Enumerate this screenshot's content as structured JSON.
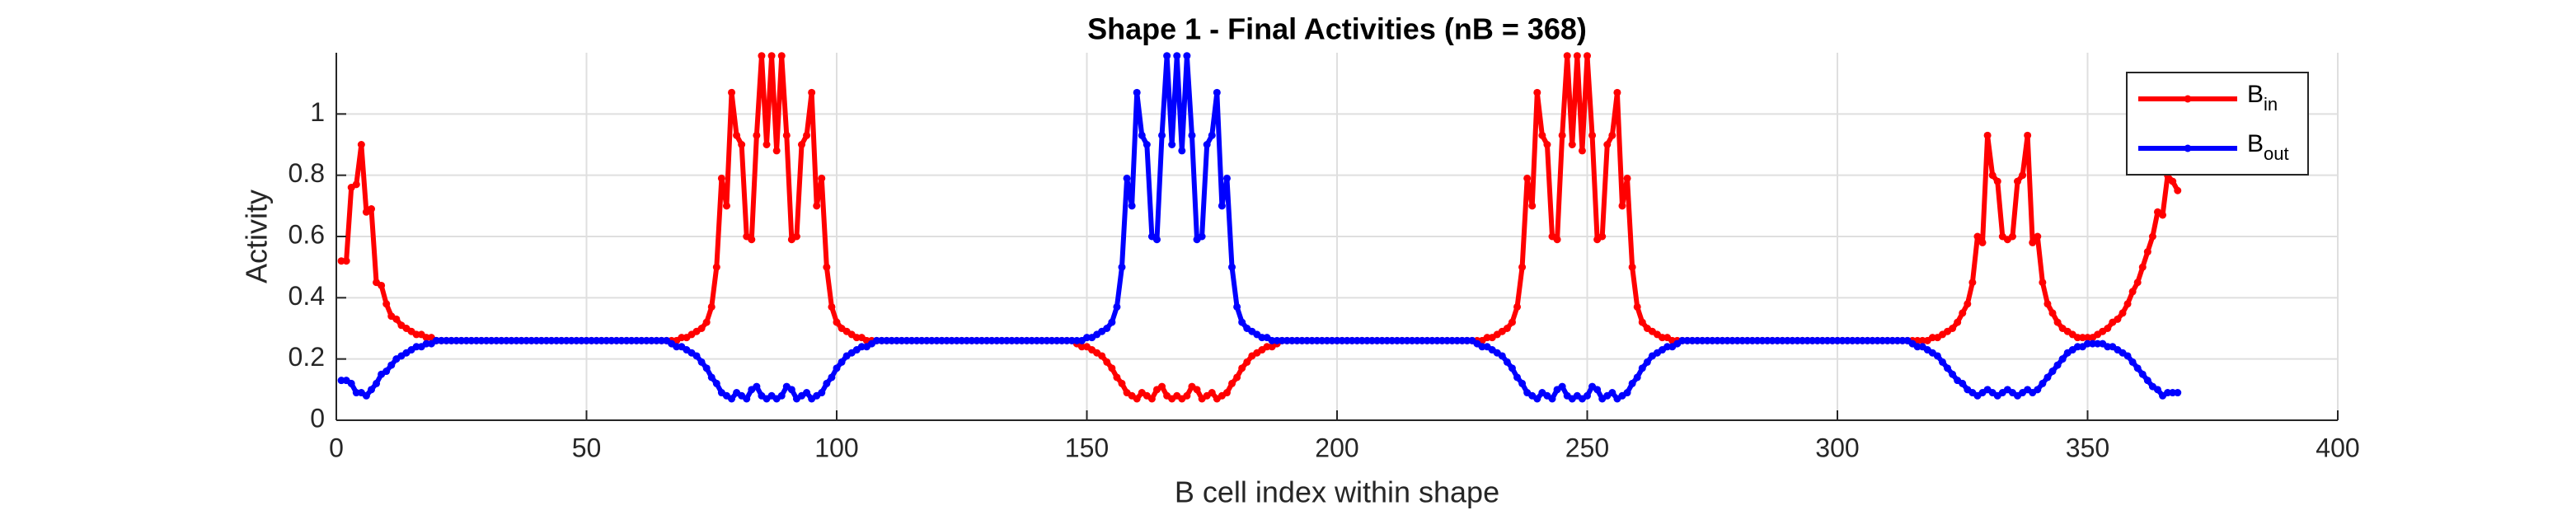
{
  "chart_data": {
    "type": "line",
    "title": "Shape 1 - Final Activities (nB = 368)",
    "x_label": "B cell index within shape",
    "y_label": "Activity",
    "xlim": [
      0,
      400
    ],
    "xticks": [
      0,
      50,
      100,
      150,
      200,
      250,
      300,
      350,
      400
    ],
    "ylim": [
      0,
      1.2
    ],
    "yticks": [
      0,
      0.2,
      0.4,
      0.6,
      0.8,
      1
    ],
    "grid": true,
    "legend": "northeast",
    "x": [
      1,
      2,
      3,
      4,
      5,
      6,
      7,
      8,
      9,
      10,
      11,
      12,
      13,
      14,
      15,
      16,
      17,
      18,
      19,
      20,
      21,
      22,
      23,
      24,
      25,
      26,
      27,
      28,
      29,
      30,
      31,
      32,
      33,
      34,
      35,
      36,
      37,
      38,
      39,
      40,
      41,
      42,
      43,
      44,
      45,
      46,
      47,
      48,
      49,
      50,
      51,
      52,
      53,
      54,
      55,
      56,
      57,
      58,
      59,
      60,
      61,
      62,
      63,
      64,
      65,
      66,
      67,
      68,
      69,
      70,
      71,
      72,
      73,
      74,
      75,
      76,
      77,
      78,
      79,
      80,
      81,
      82,
      83,
      84,
      85,
      86,
      87,
      88,
      89,
      90,
      91,
      92,
      93,
      94,
      95,
      96,
      97,
      98,
      99,
      100,
      101,
      102,
      103,
      104,
      105,
      106,
      107,
      108,
      109,
      110,
      111,
      112,
      113,
      114,
      115,
      116,
      117,
      118,
      119,
      120,
      121,
      122,
      123,
      124,
      125,
      126,
      127,
      128,
      129,
      130,
      131,
      132,
      133,
      134,
      135,
      136,
      137,
      138,
      139,
      140,
      141,
      142,
      143,
      144,
      145,
      146,
      147,
      148,
      149,
      150,
      151,
      152,
      153,
      154,
      155,
      156,
      157,
      158,
      159,
      160,
      161,
      162,
      163,
      164,
      165,
      166,
      167,
      168,
      169,
      170,
      171,
      172,
      173,
      174,
      175,
      176,
      177,
      178,
      179,
      180,
      181,
      182,
      183,
      184,
      185,
      186,
      187,
      188,
      189,
      190,
      191,
      192,
      193,
      194,
      195,
      196,
      197,
      198,
      199,
      200,
      201,
      202,
      203,
      204,
      205,
      206,
      207,
      208,
      209,
      210,
      211,
      212,
      213,
      214,
      215,
      216,
      217,
      218,
      219,
      220,
      221,
      222,
      223,
      224,
      225,
      226,
      227,
      228,
      229,
      230,
      231,
      232,
      233,
      234,
      235,
      236,
      237,
      238,
      239,
      240,
      241,
      242,
      243,
      244,
      245,
      246,
      247,
      248,
      249,
      250,
      251,
      252,
      253,
      254,
      255,
      256,
      257,
      258,
      259,
      260,
      261,
      262,
      263,
      264,
      265,
      266,
      267,
      268,
      269,
      270,
      271,
      272,
      273,
      274,
      275,
      276,
      277,
      278,
      279,
      280,
      281,
      282,
      283,
      284,
      285,
      286,
      287,
      288,
      289,
      290,
      291,
      292,
      293,
      294,
      295,
      296,
      297,
      298,
      299,
      300,
      301,
      302,
      303,
      304,
      305,
      306,
      307,
      308,
      309,
      310,
      311,
      312,
      313,
      314,
      315,
      316,
      317,
      318,
      319,
      320,
      321,
      322,
      323,
      324,
      325,
      326,
      327,
      328,
      329,
      330,
      331,
      332,
      333,
      334,
      335,
      336,
      337,
      338,
      339,
      340,
      341,
      342,
      343,
      344,
      345,
      346,
      347,
      348,
      349,
      350,
      351,
      352,
      353,
      354,
      355,
      356,
      357,
      358,
      359,
      360,
      361,
      362,
      363,
      364,
      365,
      366,
      367,
      368
    ],
    "series": [
      {
        "name": "B",
        "subscript": "in",
        "color": "#ff0000",
        "values": [
          0.52,
          0.52,
          0.76,
          0.77,
          0.9,
          0.68,
          0.69,
          0.45,
          0.44,
          0.38,
          0.34,
          0.33,
          0.31,
          0.3,
          0.29,
          0.28,
          0.28,
          0.27,
          0.27,
          0.26,
          0.26,
          0.26,
          0.26,
          0.26,
          0.26,
          0.26,
          0.26,
          0.26,
          0.26,
          0.26,
          0.26,
          0.26,
          0.26,
          0.26,
          0.26,
          0.26,
          0.26,
          0.26,
          0.26,
          0.26,
          0.26,
          0.26,
          0.26,
          0.26,
          0.26,
          0.26,
          0.26,
          0.26,
          0.26,
          0.26,
          0.26,
          0.26,
          0.26,
          0.26,
          0.26,
          0.26,
          0.26,
          0.26,
          0.26,
          0.26,
          0.26,
          0.26,
          0.26,
          0.26,
          0.26,
          0.26,
          0.26,
          0.26,
          0.27,
          0.27,
          0.28,
          0.29,
          0.3,
          0.32,
          0.37,
          0.5,
          0.79,
          0.7,
          1.07,
          0.93,
          0.9,
          0.6,
          0.59,
          0.93,
          1.19,
          0.9,
          1.19,
          0.88,
          1.19,
          0.93,
          0.59,
          0.6,
          0.9,
          0.93,
          1.07,
          0.7,
          0.79,
          0.5,
          0.37,
          0.32,
          0.3,
          0.29,
          0.28,
          0.27,
          0.27,
          0.26,
          0.26,
          0.26,
          0.26,
          0.26,
          0.26,
          0.26,
          0.26,
          0.26,
          0.26,
          0.26,
          0.26,
          0.26,
          0.26,
          0.26,
          0.26,
          0.26,
          0.26,
          0.26,
          0.26,
          0.26,
          0.26,
          0.26,
          0.26,
          0.26,
          0.26,
          0.26,
          0.26,
          0.26,
          0.26,
          0.26,
          0.26,
          0.26,
          0.26,
          0.26,
          0.26,
          0.26,
          0.26,
          0.26,
          0.26,
          0.26,
          0.26,
          0.25,
          0.24,
          0.24,
          0.23,
          0.22,
          0.21,
          0.19,
          0.17,
          0.14,
          0.12,
          0.09,
          0.08,
          0.07,
          0.09,
          0.08,
          0.07,
          0.1,
          0.11,
          0.08,
          0.07,
          0.08,
          0.07,
          0.08,
          0.11,
          0.1,
          0.07,
          0.08,
          0.09,
          0.07,
          0.08,
          0.09,
          0.12,
          0.14,
          0.17,
          0.19,
          0.21,
          0.22,
          0.23,
          0.24,
          0.24,
          0.25,
          0.26,
          0.26,
          0.26,
          0.26,
          0.26,
          0.26,
          0.26,
          0.26,
          0.26,
          0.26,
          0.26,
          0.26,
          0.26,
          0.26,
          0.26,
          0.26,
          0.26,
          0.26,
          0.26,
          0.26,
          0.26,
          0.26,
          0.26,
          0.26,
          0.26,
          0.26,
          0.26,
          0.26,
          0.26,
          0.26,
          0.26,
          0.26,
          0.26,
          0.26,
          0.26,
          0.26,
          0.26,
          0.26,
          0.26,
          0.26,
          0.26,
          0.27,
          0.27,
          0.28,
          0.29,
          0.3,
          0.32,
          0.37,
          0.5,
          0.79,
          0.7,
          1.07,
          0.93,
          0.9,
          0.6,
          0.59,
          0.93,
          1.19,
          0.9,
          1.19,
          0.88,
          1.19,
          0.93,
          0.59,
          0.6,
          0.9,
          0.93,
          1.07,
          0.7,
          0.79,
          0.5,
          0.37,
          0.32,
          0.3,
          0.29,
          0.28,
          0.27,
          0.27,
          0.26,
          0.26,
          0.26,
          0.26,
          0.26,
          0.26,
          0.26,
          0.26,
          0.26,
          0.26,
          0.26,
          0.26,
          0.26,
          0.26,
          0.26,
          0.26,
          0.26,
          0.26,
          0.26,
          0.26,
          0.26,
          0.26,
          0.26,
          0.26,
          0.26,
          0.26,
          0.26,
          0.26,
          0.26,
          0.26,
          0.26,
          0.26,
          0.26,
          0.26,
          0.26,
          0.26,
          0.26,
          0.26,
          0.26,
          0.26,
          0.26,
          0.26,
          0.26,
          0.26,
          0.26,
          0.26,
          0.26,
          0.26,
          0.26,
          0.26,
          0.26,
          0.26,
          0.27,
          0.27,
          0.28,
          0.29,
          0.3,
          0.32,
          0.35,
          0.38,
          0.45,
          0.6,
          0.58,
          0.93,
          0.8,
          0.78,
          0.6,
          0.59,
          0.6,
          0.78,
          0.8,
          0.93,
          0.58,
          0.6,
          0.45,
          0.38,
          0.35,
          0.32,
          0.3,
          0.29,
          0.28,
          0.27,
          0.27,
          0.27,
          0.27,
          0.28,
          0.29,
          0.3,
          0.32,
          0.33,
          0.35,
          0.38,
          0.42,
          0.45,
          0.5,
          0.55,
          0.6,
          0.68,
          0.67,
          0.8,
          0.78,
          0.75
        ]
      },
      {
        "name": "B",
        "subscript": "out",
        "color": "#0000ff",
        "values": [
          0.13,
          0.13,
          0.12,
          0.09,
          0.09,
          0.08,
          0.1,
          0.12,
          0.15,
          0.16,
          0.18,
          0.2,
          0.21,
          0.22,
          0.23,
          0.24,
          0.24,
          0.25,
          0.25,
          0.26,
          0.26,
          0.26,
          0.26,
          0.26,
          0.26,
          0.26,
          0.26,
          0.26,
          0.26,
          0.26,
          0.26,
          0.26,
          0.26,
          0.26,
          0.26,
          0.26,
          0.26,
          0.26,
          0.26,
          0.26,
          0.26,
          0.26,
          0.26,
          0.26,
          0.26,
          0.26,
          0.26,
          0.26,
          0.26,
          0.26,
          0.26,
          0.26,
          0.26,
          0.26,
          0.26,
          0.26,
          0.26,
          0.26,
          0.26,
          0.26,
          0.26,
          0.26,
          0.26,
          0.26,
          0.26,
          0.26,
          0.25,
          0.24,
          0.24,
          0.23,
          0.22,
          0.21,
          0.19,
          0.17,
          0.14,
          0.12,
          0.09,
          0.08,
          0.07,
          0.09,
          0.08,
          0.07,
          0.1,
          0.11,
          0.08,
          0.07,
          0.08,
          0.07,
          0.08,
          0.11,
          0.1,
          0.07,
          0.08,
          0.09,
          0.07,
          0.08,
          0.09,
          0.12,
          0.14,
          0.17,
          0.19,
          0.21,
          0.22,
          0.23,
          0.24,
          0.24,
          0.25,
          0.26,
          0.26,
          0.26,
          0.26,
          0.26,
          0.26,
          0.26,
          0.26,
          0.26,
          0.26,
          0.26,
          0.26,
          0.26,
          0.26,
          0.26,
          0.26,
          0.26,
          0.26,
          0.26,
          0.26,
          0.26,
          0.26,
          0.26,
          0.26,
          0.26,
          0.26,
          0.26,
          0.26,
          0.26,
          0.26,
          0.26,
          0.26,
          0.26,
          0.26,
          0.26,
          0.26,
          0.26,
          0.26,
          0.26,
          0.26,
          0.26,
          0.26,
          0.27,
          0.27,
          0.28,
          0.29,
          0.3,
          0.32,
          0.37,
          0.5,
          0.79,
          0.7,
          1.07,
          0.93,
          0.9,
          0.6,
          0.59,
          0.93,
          1.19,
          0.9,
          1.19,
          0.88,
          1.19,
          0.93,
          0.59,
          0.6,
          0.9,
          0.93,
          1.07,
          0.7,
          0.79,
          0.5,
          0.37,
          0.32,
          0.3,
          0.29,
          0.28,
          0.27,
          0.27,
          0.26,
          0.26,
          0.26,
          0.26,
          0.26,
          0.26,
          0.26,
          0.26,
          0.26,
          0.26,
          0.26,
          0.26,
          0.26,
          0.26,
          0.26,
          0.26,
          0.26,
          0.26,
          0.26,
          0.26,
          0.26,
          0.26,
          0.26,
          0.26,
          0.26,
          0.26,
          0.26,
          0.26,
          0.26,
          0.26,
          0.26,
          0.26,
          0.26,
          0.26,
          0.26,
          0.26,
          0.26,
          0.26,
          0.26,
          0.26,
          0.26,
          0.25,
          0.24,
          0.24,
          0.23,
          0.22,
          0.21,
          0.19,
          0.17,
          0.14,
          0.12,
          0.09,
          0.08,
          0.07,
          0.09,
          0.08,
          0.07,
          0.1,
          0.11,
          0.08,
          0.07,
          0.08,
          0.07,
          0.08,
          0.11,
          0.1,
          0.07,
          0.08,
          0.09,
          0.07,
          0.08,
          0.09,
          0.12,
          0.14,
          0.17,
          0.19,
          0.21,
          0.22,
          0.23,
          0.24,
          0.24,
          0.25,
          0.26,
          0.26,
          0.26,
          0.26,
          0.26,
          0.26,
          0.26,
          0.26,
          0.26,
          0.26,
          0.26,
          0.26,
          0.26,
          0.26,
          0.26,
          0.26,
          0.26,
          0.26,
          0.26,
          0.26,
          0.26,
          0.26,
          0.26,
          0.26,
          0.26,
          0.26,
          0.26,
          0.26,
          0.26,
          0.26,
          0.26,
          0.26,
          0.26,
          0.26,
          0.26,
          0.26,
          0.26,
          0.26,
          0.26,
          0.26,
          0.26,
          0.26,
          0.26,
          0.26,
          0.26,
          0.26,
          0.25,
          0.24,
          0.24,
          0.23,
          0.22,
          0.21,
          0.19,
          0.17,
          0.15,
          0.13,
          0.12,
          0.1,
          0.09,
          0.08,
          0.09,
          0.1,
          0.09,
          0.08,
          0.09,
          0.1,
          0.09,
          0.08,
          0.09,
          0.1,
          0.09,
          0.1,
          0.12,
          0.14,
          0.16,
          0.18,
          0.2,
          0.22,
          0.23,
          0.24,
          0.24,
          0.25,
          0.25,
          0.25,
          0.25,
          0.24,
          0.24,
          0.23,
          0.22,
          0.21,
          0.19,
          0.17,
          0.15,
          0.13,
          0.11,
          0.1,
          0.08,
          0.09,
          0.09,
          0.09
        ]
      }
    ]
  }
}
